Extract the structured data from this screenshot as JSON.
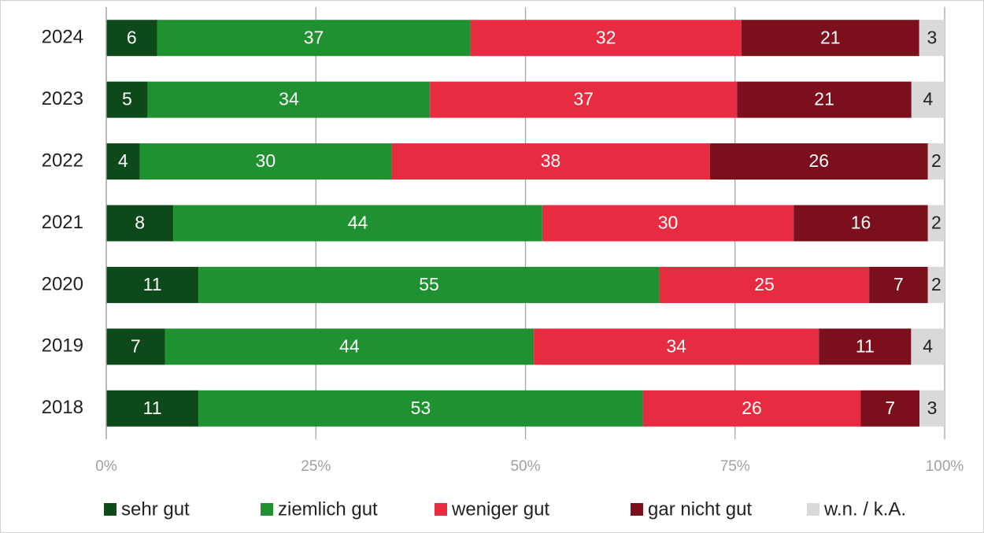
{
  "chart_data": {
    "type": "stacked_percent_bar",
    "orientation": "horizontal",
    "categories": [
      "2024",
      "2023",
      "2022",
      "2021",
      "2020",
      "2019",
      "2018"
    ],
    "series": [
      {
        "name": "sehr gut",
        "color": "#0e4a19",
        "values": [
          6,
          5,
          4,
          8,
          11,
          7,
          11
        ]
      },
      {
        "name": "ziemlich gut",
        "color": "#1f9131",
        "values": [
          37,
          34,
          30,
          44,
          55,
          44,
          53
        ]
      },
      {
        "name": "weniger gut",
        "color": "#e72b40",
        "values": [
          32,
          37,
          38,
          30,
          25,
          34,
          26
        ]
      },
      {
        "name": "gar nicht gut",
        "color": "#7b0f1c",
        "values": [
          21,
          21,
          26,
          16,
          7,
          11,
          7
        ]
      },
      {
        "name": "w.n. / k.A.",
        "color": "#d9d9d9",
        "values": [
          3,
          4,
          2,
          2,
          2,
          4,
          3
        ]
      }
    ],
    "xlim": [
      0,
      100
    ],
    "xticks": [
      {
        "value": 0,
        "label": "0%"
      },
      {
        "value": 25,
        "label": "25%"
      },
      {
        "value": 50,
        "label": "50%"
      },
      {
        "value": 75,
        "label": "75%"
      },
      {
        "value": 100,
        "label": "100%"
      }
    ],
    "grid": true,
    "legend": "bottom"
  }
}
